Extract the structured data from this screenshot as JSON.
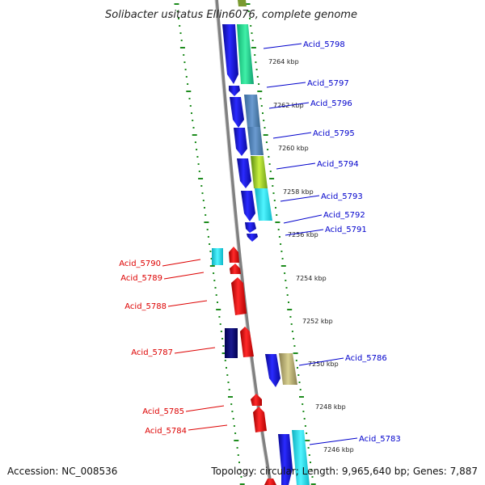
{
  "title": "Solibacter usitatus Ellin6076, complete genome",
  "footer": {
    "accession": "Accession: NC_008536",
    "summary": "Topology: circular; Length: 9,965,640 bp; Genes: 7,887"
  },
  "colors": {
    "plus_strand_label": "#0000cc",
    "minus_strand_label": "#dd0000",
    "backbone": "#808080",
    "ticks": "#1e8c1e"
  },
  "kbp_marks": [
    "7264 kbp",
    "7262 kbp",
    "7260 kbp",
    "7258 kbp",
    "7256 kbp",
    "7254 kbp",
    "7252 kbp",
    "7250 kbp",
    "7248 kbp",
    "7246 kbp"
  ],
  "genes_plus": [
    "Acid_5798",
    "Acid_5797",
    "Acid_5796",
    "Acid_5795",
    "Acid_5794",
    "Acid_5793",
    "Acid_5792",
    "Acid_5791",
    "Acid_5786",
    "Acid_5783"
  ],
  "genes_minus": [
    "Acid_5790",
    "Acid_5789",
    "Acid_5788",
    "Acid_5787",
    "Acid_5785",
    "Acid_5784"
  ]
}
